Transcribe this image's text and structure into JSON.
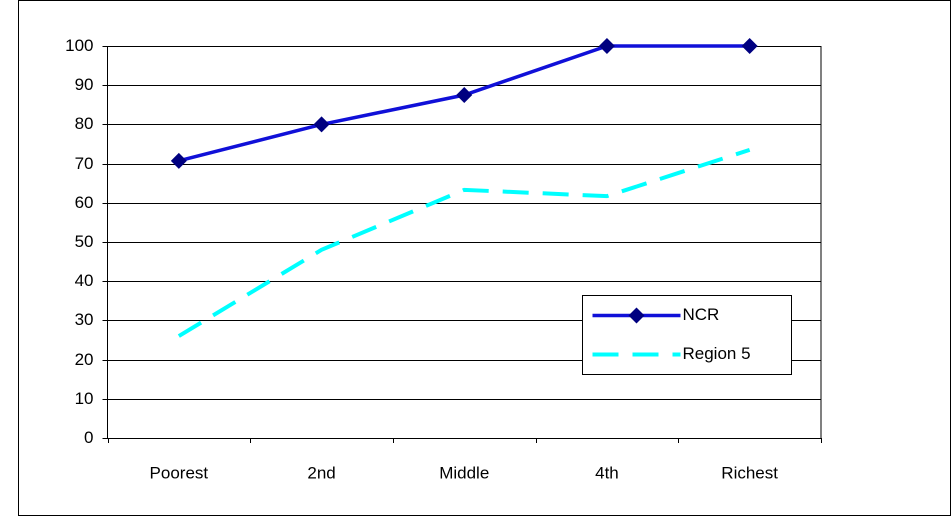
{
  "chart_data": {
    "type": "line",
    "categories": [
      "Poorest",
      "2nd",
      "Middle",
      "4th",
      "Richest"
    ],
    "series": [
      {
        "name": "NCR",
        "color": "#1010d8",
        "marker": "diamond",
        "marker_color": "#000080",
        "dashed": false,
        "values": [
          70.7,
          80,
          87.5,
          100,
          100
        ]
      },
      {
        "name": "Region 5",
        "color": "#00ffff",
        "marker": "none",
        "dashed": true,
        "values": [
          26,
          48,
          63.3,
          61.7,
          73.5
        ]
      }
    ],
    "ylim": [
      0,
      100
    ],
    "yticks": [
      0,
      10,
      20,
      30,
      40,
      50,
      60,
      70,
      80,
      90,
      100
    ],
    "grid": true
  }
}
